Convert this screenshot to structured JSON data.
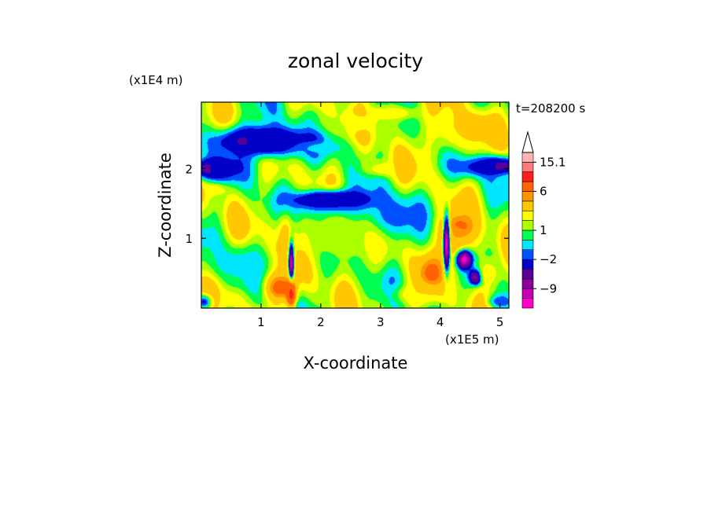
{
  "chart_data": {
    "type": "heatmap",
    "title": "zonal velocity",
    "xlabel": "X-coordinate",
    "ylabel": "Z-coordinate",
    "x_scale_label": "(x1E5 m)",
    "y_scale_label": "(x1E4 m)",
    "time_label": "t=208200 s",
    "xlim": [
      0,
      5.15
    ],
    "ylim": [
      0,
      2.95
    ],
    "x_ticks": [
      {
        "value": 1,
        "label": "1"
      },
      {
        "value": 2,
        "label": "2"
      },
      {
        "value": 3,
        "label": "3"
      },
      {
        "value": 4,
        "label": "4"
      },
      {
        "value": 5,
        "label": "5"
      }
    ],
    "y_ticks": [
      {
        "value": 1,
        "label": "1"
      },
      {
        "value": 2,
        "label": "2"
      }
    ],
    "colorbar": {
      "levels": [
        {
          "color": "#ff00c8"
        },
        {
          "color": "#c800b4"
        },
        {
          "color": "#8c00a0"
        },
        {
          "color": "#5a0096"
        },
        {
          "color": "#0000c8"
        },
        {
          "color": "#0050ff"
        },
        {
          "color": "#00e6ff"
        },
        {
          "color": "#00ff50"
        },
        {
          "color": "#aaff00"
        },
        {
          "color": "#ffff00"
        },
        {
          "color": "#ffc800"
        },
        {
          "color": "#ff9600"
        },
        {
          "color": "#ff6400"
        },
        {
          "color": "#ff1e1e"
        },
        {
          "color": "#ff7a7a"
        },
        {
          "color": "#ffb4b4"
        }
      ],
      "labels": [
        {
          "value": -9,
          "label": "−9"
        },
        {
          "value": -2,
          "label": "−2"
        },
        {
          "value": 1,
          "label": "1"
        },
        {
          "value": 6,
          "label": "6"
        },
        {
          "value": 15.1,
          "label": "15.1"
        }
      ]
    },
    "blobs": [
      {
        "x": 1.0,
        "z": 2.4,
        "rx": 0.55,
        "rz": 0.14,
        "v": -12
      },
      {
        "x": 1.1,
        "z": 2.4,
        "rx": 0.85,
        "rz": 0.26,
        "v": -3
      },
      {
        "x": 0.15,
        "z": 2.0,
        "rx": 0.2,
        "rz": 0.1,
        "v": -12
      },
      {
        "x": 0.3,
        "z": 2.0,
        "rx": 0.45,
        "rz": 0.2,
        "v": -3
      },
      {
        "x": 2.2,
        "z": 1.55,
        "rx": 0.5,
        "rz": 0.1,
        "v": -12
      },
      {
        "x": 2.25,
        "z": 1.5,
        "rx": 0.75,
        "rz": 0.2,
        "v": -3
      },
      {
        "x": 4.9,
        "z": 2.05,
        "rx": 0.3,
        "rz": 0.09,
        "v": -12
      },
      {
        "x": 4.7,
        "z": 2.05,
        "rx": 0.55,
        "rz": 0.17,
        "v": -3
      },
      {
        "x": 4.55,
        "z": 2.6,
        "rx": 0.35,
        "rz": 0.18,
        "v": 6
      },
      {
        "x": 4.4,
        "z": 2.5,
        "rx": 0.6,
        "rz": 0.3,
        "v": 3
      },
      {
        "x": 3.2,
        "z": 1.3,
        "rx": 0.5,
        "rz": 0.3,
        "v": -2
      },
      {
        "x": 2.3,
        "z": 1.0,
        "rx": 0.7,
        "rz": 0.35,
        "v": 2
      },
      {
        "x": 0.6,
        "z": 0.65,
        "rx": 0.55,
        "rz": 0.25,
        "v": -0.5
      },
      {
        "x": 1.4,
        "z": 1.0,
        "rx": 0.15,
        "rz": 0.4,
        "v": 4
      },
      {
        "x": 1.5,
        "z": 0.6,
        "rx": 0.04,
        "rz": 0.3,
        "v": -12
      },
      {
        "x": 1.3,
        "z": 0.3,
        "rx": 0.25,
        "rz": 0.2,
        "v": 7
      },
      {
        "x": 1.5,
        "z": 0.2,
        "rx": 0.08,
        "rz": 0.2,
        "v": 10
      },
      {
        "x": 4.3,
        "z": 1.15,
        "rx": 0.2,
        "rz": 0.15,
        "v": 11
      },
      {
        "x": 4.25,
        "z": 1.0,
        "rx": 0.35,
        "rz": 0.4,
        "v": 5
      },
      {
        "x": 4.1,
        "z": 0.9,
        "rx": 0.05,
        "rz": 0.4,
        "v": -12
      },
      {
        "x": 4.4,
        "z": 0.7,
        "rx": 0.12,
        "rz": 0.12,
        "v": -12
      },
      {
        "x": 4.6,
        "z": 0.45,
        "rx": 0.1,
        "rz": 0.1,
        "v": -12
      },
      {
        "x": 3.85,
        "z": 0.5,
        "rx": 0.2,
        "rz": 0.25,
        "v": 7
      },
      {
        "x": 4.8,
        "z": 0.5,
        "rx": 0.2,
        "rz": 0.2,
        "v": 3
      },
      {
        "x": 0.05,
        "z": 0.1,
        "rx": 0.12,
        "rz": 0.1,
        "v": -3
      },
      {
        "x": 0.4,
        "z": 0.15,
        "rx": 0.25,
        "rz": 0.1,
        "v": 3
      },
      {
        "x": 3.6,
        "z": 0.2,
        "rx": 0.4,
        "rz": 0.15,
        "v": 3
      },
      {
        "x": 5.0,
        "z": 0.1,
        "rx": 0.2,
        "rz": 0.1,
        "v": -2
      },
      {
        "x": 2.5,
        "z": 2.65,
        "rx": 0.6,
        "rz": 0.15,
        "v": 2
      },
      {
        "x": 3.2,
        "z": 2.8,
        "rx": 0.5,
        "rz": 0.12,
        "v": 3
      },
      {
        "x": 0.2,
        "z": 1.7,
        "rx": 0.25,
        "rz": 0.1,
        "v": 3
      },
      {
        "x": 3.1,
        "z": 2.0,
        "rx": 0.4,
        "rz": 0.12,
        "v": 3
      },
      {
        "x": 2.0,
        "z": 2.3,
        "rx": 0.4,
        "rz": 0.1,
        "v": -0.5
      }
    ],
    "background_value": 1.5
  }
}
